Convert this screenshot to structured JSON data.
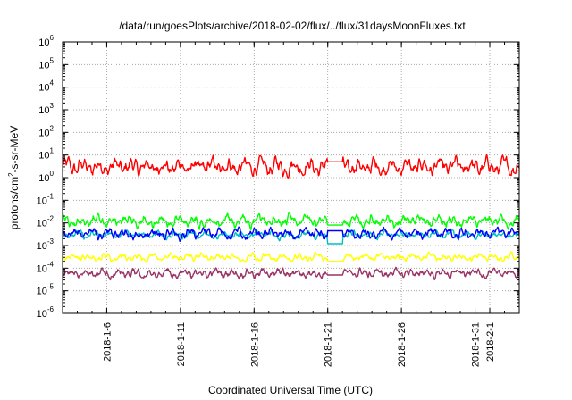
{
  "chart_data": {
    "type": "line",
    "title": "/data/run/goesPlots/archive/2018-02-02/flux/../flux/31daysMoonFluxes.txt",
    "xlabel": "Coordinated Universal Time (UTC)",
    "ylabel": {
      "base": "protons/cm",
      "sup": "2",
      "rest": "-s-sr-MeV"
    },
    "yscale": "log",
    "ylim": [
      1e-06,
      1000000.0
    ],
    "xlim": [
      "2018-01-03",
      "2018-02-03"
    ],
    "grid": true,
    "legend": "none",
    "y_ticks": [
      {
        "value": 1e-06,
        "base": "10",
        "exp": "-6"
      },
      {
        "value": 1e-05,
        "base": "10",
        "exp": "-5"
      },
      {
        "value": 0.0001,
        "base": "10",
        "exp": "-4"
      },
      {
        "value": 0.001,
        "base": "10",
        "exp": "-3"
      },
      {
        "value": 0.01,
        "base": "10",
        "exp": "-2"
      },
      {
        "value": 0.1,
        "base": "10",
        "exp": "-1"
      },
      {
        "value": 1.0,
        "base": "10",
        "exp": "0"
      },
      {
        "value": 10.0,
        "base": "10",
        "exp": "1"
      },
      {
        "value": 100.0,
        "base": "10",
        "exp": "2"
      },
      {
        "value": 1000.0,
        "base": "10",
        "exp": "3"
      },
      {
        "value": 10000.0,
        "base": "10",
        "exp": "4"
      },
      {
        "value": 100000.0,
        "base": "10",
        "exp": "5"
      },
      {
        "value": 1000000.0,
        "base": "10",
        "exp": "6"
      }
    ],
    "x_ticks": [
      {
        "date": "2018-01-06",
        "label": "2018-1-6"
      },
      {
        "date": "2018-01-11",
        "label": "2018-1-11"
      },
      {
        "date": "2018-01-16",
        "label": "2018-1-16"
      },
      {
        "date": "2018-01-21",
        "label": "2018-1-21"
      },
      {
        "date": "2018-01-26",
        "label": "2018-1-26"
      },
      {
        "date": "2018-01-31",
        "label": "2018-1-31"
      },
      {
        "date": "2018-02-01",
        "label": "2018-2-1"
      }
    ],
    "data_gap": [
      "2018-01-21",
      "2018-01-22"
    ],
    "series": [
      {
        "color": "#ff0000",
        "typical_value": 3,
        "variation_decades": 0.55,
        "gap_value": 5
      },
      {
        "color": "#00ff00",
        "typical_value": 0.012,
        "variation_decades": 0.4,
        "gap_value": 0.008
      },
      {
        "color": "#00bfbf",
        "typical_value": 0.003,
        "variation_decades": 0.25,
        "gap_value": 0.0012
      },
      {
        "color": "#0000ff",
        "typical_value": 0.0035,
        "variation_decades": 0.35,
        "gap_value": 0.0045
      },
      {
        "color": "#ffff00",
        "typical_value": 0.0003,
        "variation_decades": 0.25,
        "gap_value": 0.0002
      },
      {
        "color": "#993366",
        "typical_value": 6e-05,
        "variation_decades": 0.3,
        "gap_value": 5e-05
      }
    ]
  }
}
